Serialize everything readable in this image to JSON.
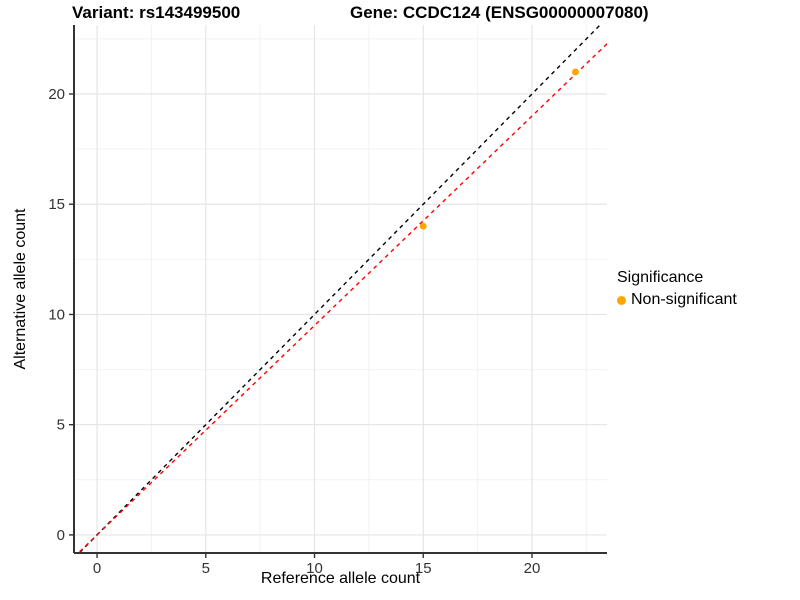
{
  "chart_data": {
    "type": "scatter",
    "title_left": "Variant: rs143499500",
    "title_right": "Gene: CCDC124 (ENSG00000007080)",
    "xlabel": "Reference allele count",
    "ylabel": "Alternative allele count",
    "xlim": [
      -1.06,
      23.45
    ],
    "ylim": [
      -0.82,
      23.13
    ],
    "xticks": [
      0,
      5,
      10,
      15,
      20
    ],
    "yticks": [
      0,
      5,
      10,
      15,
      20
    ],
    "minor_ticks": [
      2.5,
      7.5,
      12.5,
      17.5,
      22.5
    ],
    "points": [
      {
        "x": 15,
        "y": 14
      },
      {
        "x": 22,
        "y": 21
      }
    ],
    "point_color": "#FFA500",
    "point_radius": 3.4,
    "lines": [
      {
        "name": "identity-line",
        "slope": 1.0,
        "intercept": 0,
        "color": "#000000"
      },
      {
        "name": "regression-line",
        "slope": 0.95,
        "intercept": 0,
        "color": "#FF0000"
      }
    ],
    "grid": {
      "major": "#E5E5E5",
      "minor": "#F2F2F2",
      "background": "#FFFFFF"
    },
    "axis_color": "#333333",
    "tick_label_color": "#333333",
    "legend": {
      "title": "Significance",
      "items": [
        {
          "label": "Non-significant",
          "color": "#FFA500"
        }
      ]
    }
  }
}
